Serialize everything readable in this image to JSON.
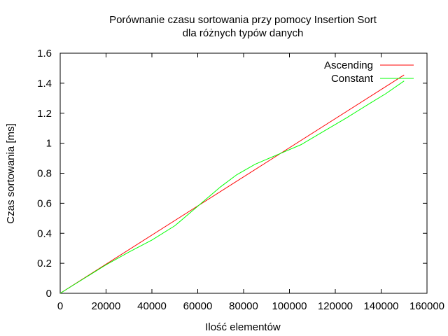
{
  "chart_data": {
    "type": "line",
    "title_line1": "Porównanie czasu sortowania przy pomocy Insertion Sort",
    "title_line2": "dla różnych typów danych",
    "xlabel": "Ilość elementów",
    "ylabel": "Czas sortowania [ms]",
    "xlim": [
      0,
      160000
    ],
    "ylim": [
      0,
      1.6
    ],
    "x_ticks": [
      "0",
      "20000",
      "40000",
      "60000",
      "80000",
      "100000",
      "120000",
      "140000",
      "160000"
    ],
    "y_ticks": [
      "0",
      "0.2",
      "0.4",
      "0.6",
      "0.8",
      "1",
      "1.2",
      "1.4",
      "1.6"
    ],
    "grid": false,
    "legend_position": "top-right",
    "series": [
      {
        "name": "Ascending",
        "color": "#ff0000",
        "x": [
          0,
          150000
        ],
        "y": [
          0,
          1.455
        ]
      },
      {
        "name": "Constant",
        "color": "#00ff00",
        "x": [
          0,
          10000,
          20000,
          30000,
          40000,
          50000,
          60000,
          70000,
          77000,
          85000,
          95000,
          105000,
          115000,
          125000,
          135000,
          142000,
          150000
        ],
        "y": [
          0,
          0.095,
          0.19,
          0.275,
          0.355,
          0.45,
          0.58,
          0.71,
          0.79,
          0.86,
          0.925,
          0.99,
          1.08,
          1.17,
          1.265,
          1.33,
          1.415
        ]
      }
    ]
  }
}
